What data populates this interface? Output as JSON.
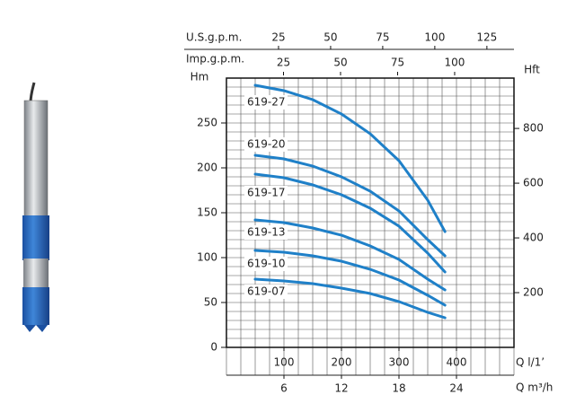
{
  "chart_data": {
    "type": "line",
    "ylabel": "Hm",
    "y2label": "Hft",
    "xlabel": "Q l/1’",
    "x2label": "Q m³/h",
    "x3label": "U.S.g.p.m.",
    "x4label": "Imp.g.p.m.",
    "x": [
      50,
      100,
      150,
      200,
      250,
      300,
      350,
      380
    ],
    "series": [
      {
        "name": "619-27",
        "color": "#1f80c8",
        "values": [
          292,
          286,
          276,
          260,
          238,
          208,
          164,
          129
        ]
      },
      {
        "name": "619-20",
        "color": "#1f80c8",
        "values": [
          214,
          210,
          202,
          190,
          174,
          152,
          120,
          102
        ]
      },
      {
        "name": "619-17",
        "color": "#1f80c8",
        "values": [
          193,
          189,
          181,
          170,
          155,
          135,
          105,
          84
        ]
      },
      {
        "name": "619-13",
        "color": "#1f80c8",
        "values": [
          142,
          139,
          133,
          125,
          113,
          98,
          76,
          64
        ]
      },
      {
        "name": "619-10",
        "color": "#1f80c8",
        "values": [
          108,
          106,
          102,
          96,
          87,
          75,
          58,
          47
        ]
      },
      {
        "name": "619-07",
        "color": "#1f80c8",
        "values": [
          76,
          74,
          71,
          66,
          60,
          51,
          39,
          33
        ]
      }
    ],
    "xlim": [
      0,
      500
    ],
    "xticks": [
      100,
      200,
      300,
      400
    ],
    "x2lim": [
      0,
      30
    ],
    "x2ticks": [
      6,
      12,
      18,
      24
    ],
    "x3lim": [
      0,
      138
    ],
    "x3ticks": [
      25,
      50,
      75,
      100,
      125
    ],
    "x4lim": [
      0,
      126
    ],
    "x4ticks": [
      25,
      50,
      75,
      100
    ],
    "ylim": [
      0,
      300
    ],
    "yticks": [
      0,
      50,
      100,
      150,
      200,
      250
    ],
    "y2lim": [
      0,
      984
    ],
    "y2ticks": [
      200,
      400,
      600,
      800
    ],
    "grid": true
  }
}
